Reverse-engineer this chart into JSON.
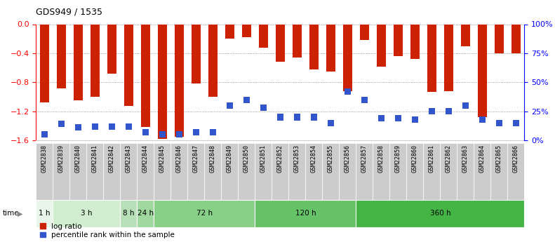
{
  "title": "GDS949 / 1535",
  "samples": [
    "GSM22838",
    "GSM22839",
    "GSM22840",
    "GSM22841",
    "GSM22842",
    "GSM22843",
    "GSM22844",
    "GSM22845",
    "GSM22846",
    "GSM22847",
    "GSM22848",
    "GSM22849",
    "GSM22850",
    "GSM22851",
    "GSM22852",
    "GSM22853",
    "GSM22854",
    "GSM22855",
    "GSM22856",
    "GSM22857",
    "GSM22858",
    "GSM22859",
    "GSM22860",
    "GSM22861",
    "GSM22862",
    "GSM22863",
    "GSM22864",
    "GSM22865",
    "GSM22866"
  ],
  "log_ratio": [
    -1.08,
    -0.88,
    -1.05,
    -1.0,
    -0.68,
    -1.13,
    -1.42,
    -1.58,
    -1.55,
    -0.82,
    -1.0,
    -0.2,
    -0.18,
    -0.32,
    -0.52,
    -0.46,
    -0.62,
    -0.65,
    -0.92,
    -0.22,
    -0.58,
    -0.44,
    -0.48,
    -0.93,
    -0.92,
    -0.3,
    -1.28,
    -0.4,
    -0.4
  ],
  "percentile": [
    5,
    14,
    11,
    12,
    12,
    12,
    7,
    5,
    5,
    7,
    7,
    30,
    35,
    28,
    20,
    20,
    20,
    15,
    42,
    35,
    19,
    19,
    18,
    25,
    25,
    30,
    18,
    15,
    15
  ],
  "time_groups": [
    {
      "label": "1 h",
      "start": 0,
      "end": 1,
      "color": "#e8f5e9"
    },
    {
      "label": "3 h",
      "start": 1,
      "end": 5,
      "color": "#d0edcf"
    },
    {
      "label": "8 h",
      "start": 5,
      "end": 6,
      "color": "#b8e0b8"
    },
    {
      "label": "24 h",
      "start": 6,
      "end": 7,
      "color": "#a0d8a0"
    },
    {
      "label": "72 h",
      "start": 7,
      "end": 13,
      "color": "#88cf88"
    },
    {
      "label": "120 h",
      "start": 13,
      "end": 19,
      "color": "#66c266"
    },
    {
      "label": "360 h",
      "start": 19,
      "end": 29,
      "color": "#44b444"
    }
  ],
  "bar_color": "#cc2200",
  "blue_color": "#3355cc",
  "ylim_min": -1.6,
  "ylim_max": 0.0,
  "yticks": [
    0,
    -0.4,
    -0.8,
    -1.2,
    -1.6
  ],
  "right_ytick_vals": [
    100,
    75,
    50,
    25,
    0
  ],
  "right_ytick_labels": [
    "100%",
    "75%",
    "50%",
    "25%",
    "0%"
  ],
  "bar_width": 0.55,
  "blue_bar_width": 0.35,
  "fig_bg": "#ffffff"
}
